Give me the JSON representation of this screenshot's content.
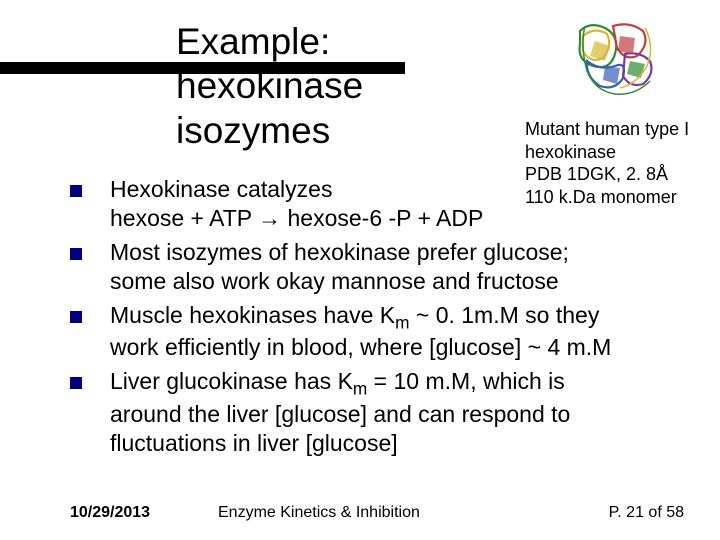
{
  "title_lines": [
    "Example:",
    "hexokinase",
    "isozymes"
  ],
  "protein": {
    "colors": [
      "#2e8b2e",
      "#d4b82e",
      "#c04040",
      "#3a5fb8",
      "#7a3a9c"
    ],
    "bg": "#ffffff"
  },
  "caption_lines": [
    "Mutant human type I",
    "hexokinase",
    "PDB 1DGK, 2. 8Å",
    "110 k.Da monomer"
  ],
  "bullets": [
    {
      "lines": [
        "Hexokinase catalyzes",
        "hexose + ATP → hexose-6 -P + ADP"
      ]
    },
    {
      "lines": [
        "Most isozymes of hexokinase prefer glucose;",
        "some also work okay mannose and fructose"
      ]
    },
    {
      "lines": [
        "Muscle hexokinases have K<sub>m</sub> ~ 0. 1m.M so they",
        "work efficiently in blood, where [glucose] ~ 4 m.M"
      ]
    },
    {
      "lines": [
        "Liver glucokinase has K<sub>m</sub> = 10 m.M, which is",
        "around the liver [glucose] and can respond to",
        "fluctuations in liver [glucose]"
      ]
    }
  ],
  "footer": {
    "date": "10/29/2013",
    "title": "Enzyme Kinetics & Inhibition",
    "page": "P. 21 of 58"
  },
  "bullet_color": "#000080",
  "top_bar_color": "#000000"
}
